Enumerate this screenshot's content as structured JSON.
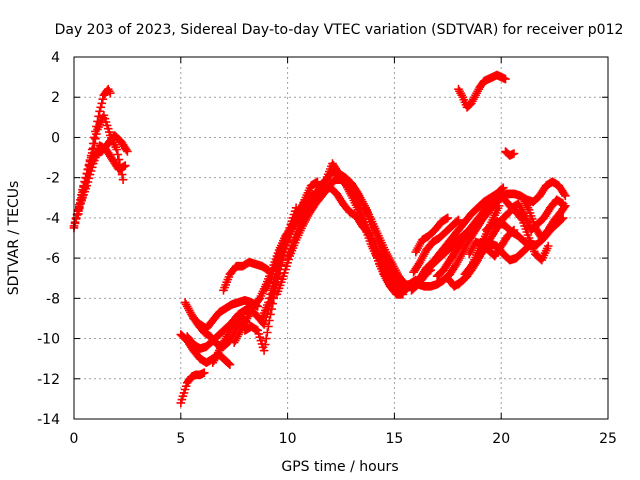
{
  "chart_data": {
    "type": "scatter",
    "title": "Day 203 of 2023, Sidereal Day-to-day VTEC variation (SDTVAR) for receiver p012",
    "xlabel": "GPS time / hours",
    "ylabel": "SDTVAR / TECUs",
    "xlim": [
      0,
      25
    ],
    "ylim": [
      -14,
      4
    ],
    "xticks": [
      0,
      5,
      10,
      15,
      20,
      25
    ],
    "yticks": [
      -14,
      -12,
      -10,
      -8,
      -6,
      -4,
      -2,
      0,
      2,
      4
    ],
    "xtick_labels": [
      "0",
      "5",
      "10",
      "15",
      "20",
      "25"
    ],
    "ytick_labels": [
      "-14",
      "-12",
      "-10",
      "-8",
      "-6",
      "-4",
      "-2",
      "0",
      "2",
      "4"
    ],
    "grid": true,
    "marker": "+",
    "color": "#ff0000",
    "tracks": [
      {
        "x": [
          0.0,
          0.2,
          0.4,
          0.6,
          0.8,
          1.0,
          1.2,
          1.4,
          1.6,
          1.7
        ],
        "y": [
          -4.5,
          -3.6,
          -2.6,
          -1.8,
          -0.9,
          0.3,
          1.3,
          2.1,
          2.4,
          2.2
        ]
      },
      {
        "x": [
          0.0,
          0.3,
          0.6,
          0.9,
          1.2,
          1.5,
          1.8,
          2.1,
          2.4
        ],
        "y": [
          -4.4,
          -3.3,
          -2.4,
          -1.3,
          -0.4,
          -0.6,
          -1.1,
          -1.6,
          -1.4
        ]
      },
      {
        "x": [
          0.1,
          0.4,
          0.7,
          1.0,
          1.3,
          1.6,
          1.9,
          2.2,
          2.5
        ],
        "y": [
          -4.0,
          -2.9,
          -1.6,
          -0.8,
          -0.7,
          -0.3,
          0.1,
          -0.2,
          -0.7
        ]
      },
      {
        "x": [
          0.2,
          0.5,
          0.8,
          1.1,
          1.4,
          1.7,
          2.0,
          2.3
        ],
        "y": [
          -3.8,
          -2.2,
          -1.0,
          0.4,
          1.1,
          0.1,
          -0.6,
          -2.1
        ]
      },
      {
        "x": [
          5.0,
          5.15,
          5.3,
          5.5,
          5.7,
          5.9,
          6.1
        ],
        "y": [
          -13.2,
          -12.7,
          -12.2,
          -11.9,
          -11.8,
          -11.8,
          -11.7
        ]
      },
      {
        "x": [
          5.0,
          5.3,
          5.6,
          5.9,
          6.2,
          6.5,
          6.8,
          7.1,
          7.3
        ],
        "y": [
          -9.8,
          -10.1,
          -10.6,
          -11.0,
          -11.2,
          -11.0,
          -10.8,
          -11.1,
          -11.3
        ]
      },
      {
        "x": [
          5.2,
          5.5,
          5.8,
          6.1,
          6.4,
          6.7,
          7.0,
          7.3,
          7.6,
          7.9,
          8.1
        ],
        "y": [
          -8.2,
          -8.8,
          -9.3,
          -9.7,
          -9.9,
          -10.3,
          -10.4,
          -10.1,
          -9.5,
          -9.0,
          -9.2
        ]
      },
      {
        "x": [
          5.3,
          5.6,
          5.9,
          6.2,
          6.5,
          6.8,
          7.1,
          7.4,
          7.7,
          8.0,
          8.3
        ],
        "y": [
          -9.9,
          -10.3,
          -10.5,
          -10.4,
          -10.1,
          -9.8,
          -9.5,
          -9.2,
          -8.8,
          -8.6,
          -8.4
        ]
      },
      {
        "x": [
          5.6,
          5.9,
          6.2,
          6.5,
          6.8,
          7.1,
          7.4,
          7.7,
          8.0,
          8.3,
          8.6
        ],
        "y": [
          -9.0,
          -9.3,
          -9.5,
          -9.1,
          -8.7,
          -8.5,
          -8.3,
          -8.2,
          -8.1,
          -8.2,
          -8.4
        ]
      },
      {
        "x": [
          6.5,
          6.8,
          7.1,
          7.4,
          7.7,
          8.0,
          8.3,
          8.6,
          8.9,
          9.2,
          9.5,
          9.8,
          10.1,
          10.4
        ],
        "y": [
          -11.2,
          -10.6,
          -10.0,
          -9.4,
          -8.9,
          -8.6,
          -8.6,
          -8.9,
          -9.3,
          -8.2,
          -6.8,
          -5.4,
          -4.5,
          -3.5
        ]
      },
      {
        "x": [
          7.0,
          7.3,
          7.6,
          7.9,
          8.2,
          8.5,
          8.8,
          9.1
        ],
        "y": [
          -7.6,
          -6.8,
          -6.4,
          -6.4,
          -6.2,
          -6.3,
          -6.4,
          -6.6
        ]
      },
      {
        "x": [
          7.5,
          7.8,
          8.1,
          8.4,
          8.7,
          9.0,
          9.3,
          9.6,
          9.9,
          10.2,
          10.5,
          10.8,
          11.1,
          11.4
        ],
        "y": [
          -10.2,
          -9.6,
          -9.0,
          -8.4,
          -8.0,
          -7.3,
          -6.5,
          -5.6,
          -4.9,
          -4.5,
          -3.9,
          -3.1,
          -2.4,
          -2.2
        ]
      },
      {
        "x": [
          8.0,
          8.3,
          8.6,
          8.9,
          9.2,
          9.5,
          9.8,
          10.1,
          10.4,
          10.7
        ],
        "y": [
          -9.6,
          -9.4,
          -9.6,
          -10.6,
          -8.8,
          -7.2,
          -5.9,
          -4.8,
          -4.1,
          -3.6
        ]
      },
      {
        "x": [
          8.8,
          9.1,
          9.4,
          9.7,
          10.0,
          10.3,
          10.6,
          10.9
        ],
        "y": [
          -9.0,
          -8.2,
          -7.0,
          -5.8,
          -4.9,
          -4.2,
          -3.6,
          -3.1
        ]
      },
      {
        "x": [
          9.0,
          9.3,
          9.6,
          9.9,
          10.2,
          10.5,
          10.8,
          11.1,
          11.4,
          11.7,
          12.0,
          12.3,
          12.6,
          12.9,
          13.2,
          13.5,
          13.8,
          14.1,
          14.4,
          14.7,
          15.0,
          15.3,
          15.6,
          15.9
        ],
        "y": [
          -7.5,
          -6.8,
          -5.8,
          -5.0,
          -4.4,
          -3.7,
          -3.2,
          -2.9,
          -2.8,
          -2.6,
          -2.5,
          -2.8,
          -3.3,
          -3.7,
          -3.9,
          -4.4,
          -4.8,
          -5.4,
          -6.1,
          -6.6,
          -7.2,
          -7.7,
          -7.5,
          -7.2
        ]
      },
      {
        "x": [
          9.5,
          9.8,
          10.1,
          10.4,
          10.7,
          11.0,
          11.3,
          11.6,
          11.9,
          12.2,
          12.5,
          12.8,
          13.1,
          13.4,
          13.7,
          14.0,
          14.3,
          14.6,
          14.9,
          15.2,
          15.5
        ],
        "y": [
          -7.8,
          -6.9,
          -5.9,
          -5.1,
          -4.4,
          -3.8,
          -3.3,
          -2.9,
          -2.5,
          -2.1,
          -2.1,
          -2.4,
          -2.9,
          -3.6,
          -4.5,
          -5.3,
          -6.3,
          -7.0,
          -7.5,
          -7.8,
          -7.6
        ]
      },
      {
        "x": [
          10.0,
          10.3,
          10.6,
          10.9,
          11.2,
          11.5,
          11.8,
          12.1,
          12.4,
          12.7,
          13.0,
          13.3,
          13.6,
          13.9,
          14.2,
          14.5,
          14.8,
          15.1,
          15.4
        ],
        "y": [
          -6.0,
          -5.1,
          -4.3,
          -3.6,
          -3.0,
          -2.5,
          -2.1,
          -1.3,
          -1.8,
          -2.3,
          -2.9,
          -3.6,
          -4.4,
          -5.3,
          -6.0,
          -6.8,
          -7.4,
          -7.8,
          -7.8
        ]
      },
      {
        "x": [
          11.5,
          11.8,
          12.1,
          12.4,
          12.7,
          13.0,
          13.3,
          13.6,
          13.9,
          14.2,
          14.5,
          14.8,
          15.1,
          15.4,
          15.7,
          16.0
        ],
        "y": [
          -2.5,
          -2.1,
          -1.7,
          -1.8,
          -2.0,
          -2.3,
          -2.8,
          -3.4,
          -4.2,
          -5.0,
          -5.8,
          -6.5,
          -7.1,
          -7.4,
          -7.3,
          -7.1
        ]
      },
      {
        "x": [
          12.5,
          12.8,
          13.1,
          13.4,
          13.7,
          14.0,
          14.3,
          14.6,
          14.9,
          15.2,
          15.5,
          15.8,
          16.1,
          16.4,
          16.7
        ],
        "y": [
          -1.9,
          -2.1,
          -2.5,
          -3.0,
          -3.6,
          -4.3,
          -5.0,
          -5.7,
          -6.3,
          -6.9,
          -7.3,
          -7.4,
          -7.1,
          -6.8,
          -6.6
        ]
      },
      {
        "x": [
          14.6,
          14.9,
          15.2,
          15.5,
          15.8,
          16.1,
          16.4,
          16.7,
          17.0,
          17.3,
          17.6,
          17.9,
          18.2,
          18.5,
          18.8,
          19.1,
          19.4,
          19.7,
          20.0,
          20.3,
          20.6,
          20.9,
          21.2,
          21.5,
          21.8,
          22.1,
          22.4,
          22.7,
          23.0
        ],
        "y": [
          -6.8,
          -7.2,
          -7.4,
          -7.5,
          -7.4,
          -7.3,
          -7.4,
          -7.4,
          -7.3,
          -7.1,
          -6.8,
          -6.3,
          -5.7,
          -5.1,
          -4.6,
          -4.1,
          -3.7,
          -3.3,
          -3.0,
          -2.8,
          -2.8,
          -2.9,
          -3.1,
          -3.2,
          -2.9,
          -2.4,
          -2.2,
          -2.4,
          -2.9
        ]
      },
      {
        "x": [
          15.8,
          16.1,
          16.4,
          16.7,
          17.0,
          17.3,
          17.6,
          17.9,
          18.2,
          18.5,
          18.8,
          19.1,
          19.4,
          19.7,
          20.0
        ],
        "y": [
          -7.6,
          -7.3,
          -6.9,
          -6.4,
          -6.1,
          -5.8,
          -5.5,
          -5.2,
          -4.9,
          -4.6,
          -4.2,
          -3.8,
          -3.3,
          -2.9,
          -2.6
        ]
      },
      {
        "x": [
          15.9,
          16.2,
          16.5,
          16.8,
          17.1,
          17.4,
          17.7,
          18.0
        ],
        "y": [
          -6.7,
          -6.2,
          -5.6,
          -5.2,
          -5.0,
          -4.7,
          -4.4,
          -4.1
        ]
      },
      {
        "x": [
          16.0,
          16.3,
          16.6,
          16.9,
          17.2,
          17.5
        ],
        "y": [
          -5.7,
          -5.1,
          -4.9,
          -4.6,
          -4.2,
          -4.0
        ]
      },
      {
        "x": [
          16.2,
          16.5,
          16.8,
          17.1,
          17.4,
          17.7,
          18.0,
          18.3,
          18.6,
          18.9,
          19.2,
          19.5,
          19.8,
          20.1
        ],
        "y": [
          -7.0,
          -6.5,
          -6.2,
          -5.8,
          -5.4,
          -5.0,
          -4.6,
          -4.2,
          -3.8,
          -3.5,
          -3.2,
          -3.0,
          -2.8,
          -2.5
        ]
      },
      {
        "x": [
          17.0,
          17.3,
          17.6,
          17.9,
          18.2,
          18.5,
          18.8,
          19.1,
          19.4,
          19.7,
          20.0,
          20.3
        ],
        "y": [
          -6.9,
          -6.6,
          -6.1,
          -5.6,
          -5.1,
          -4.7,
          -4.3,
          -3.9,
          -3.5,
          -3.2,
          -3.0,
          -2.8
        ]
      },
      {
        "x": [
          17.5,
          17.8,
          18.1,
          18.4,
          18.7,
          19.0,
          19.3,
          19.6,
          19.9
        ],
        "y": [
          -7.0,
          -7.4,
          -7.2,
          -6.9,
          -6.2,
          -5.5,
          -4.8,
          -4.1,
          -3.4
        ]
      },
      {
        "x": [
          18.0,
          18.3,
          18.6,
          18.9,
          19.2,
          19.5,
          19.8,
          20.1,
          20.4
        ],
        "y": [
          -7.3,
          -7.0,
          -6.6,
          -6.1,
          -5.5,
          -5.0,
          -4.5,
          -4.0,
          -3.7
        ]
      },
      {
        "x": [
          18.3,
          18.6,
          18.9,
          19.2,
          19.5,
          19.8,
          20.1,
          20.4,
          20.7,
          21.0,
          21.3
        ],
        "y": [
          -6.8,
          -6.4,
          -6.0,
          -5.6,
          -5.3,
          -5.4,
          -5.8,
          -6.1,
          -6.0,
          -5.7,
          -5.4
        ]
      },
      {
        "x": [
          18.5,
          18.8,
          19.1,
          19.4,
          19.7,
          20.0,
          20.3,
          20.6
        ],
        "y": [
          -5.8,
          -5.2,
          -5.3,
          -5.6,
          -5.9,
          -5.4,
          -4.9,
          -4.6
        ]
      },
      {
        "x": [
          19.3,
          19.6,
          19.9,
          20.2,
          20.5,
          20.8,
          21.1,
          21.4,
          21.7,
          22.0,
          22.3,
          22.6,
          22.9
        ],
        "y": [
          -4.6,
          -4.3,
          -4.2,
          -4.4,
          -4.7,
          -4.9,
          -5.2,
          -5.4,
          -5.3,
          -5.0,
          -4.6,
          -4.3,
          -4.0
        ]
      },
      {
        "x": [
          20.1,
          20.4,
          20.7,
          21.0,
          21.3,
          21.6,
          21.9,
          22.2
        ],
        "y": [
          -3.0,
          -3.4,
          -3.7,
          -4.1,
          -5.0,
          -5.8,
          -6.1,
          -5.4
        ]
      },
      {
        "x": [
          20.5,
          20.8,
          21.1,
          21.4,
          21.7,
          22.0,
          22.3,
          22.6,
          22.9
        ],
        "y": [
          -3.5,
          -3.3,
          -3.9,
          -4.6,
          -4.3,
          -4.0,
          -3.5,
          -3.1,
          -3.3
        ]
      },
      {
        "x": [
          21.0,
          21.3,
          21.6,
          21.9,
          22.2,
          22.5,
          22.8,
          23.0
        ],
        "y": [
          -3.0,
          -3.6,
          -4.5,
          -5.0,
          -4.6,
          -4.1,
          -3.7,
          -3.4
        ]
      },
      {
        "x": [
          18.0,
          18.2,
          18.4,
          18.6,
          18.8,
          19.0,
          19.2,
          19.4,
          19.6,
          19.8,
          20.0,
          20.2
        ],
        "y": [
          2.4,
          2.0,
          1.5,
          1.7,
          2.1,
          2.5,
          2.8,
          2.9,
          3.0,
          3.1,
          3.0,
          2.9
        ]
      },
      {
        "x": [
          20.2,
          20.4,
          20.6
        ],
        "y": [
          -0.7,
          -0.9,
          -0.8
        ]
      }
    ]
  }
}
